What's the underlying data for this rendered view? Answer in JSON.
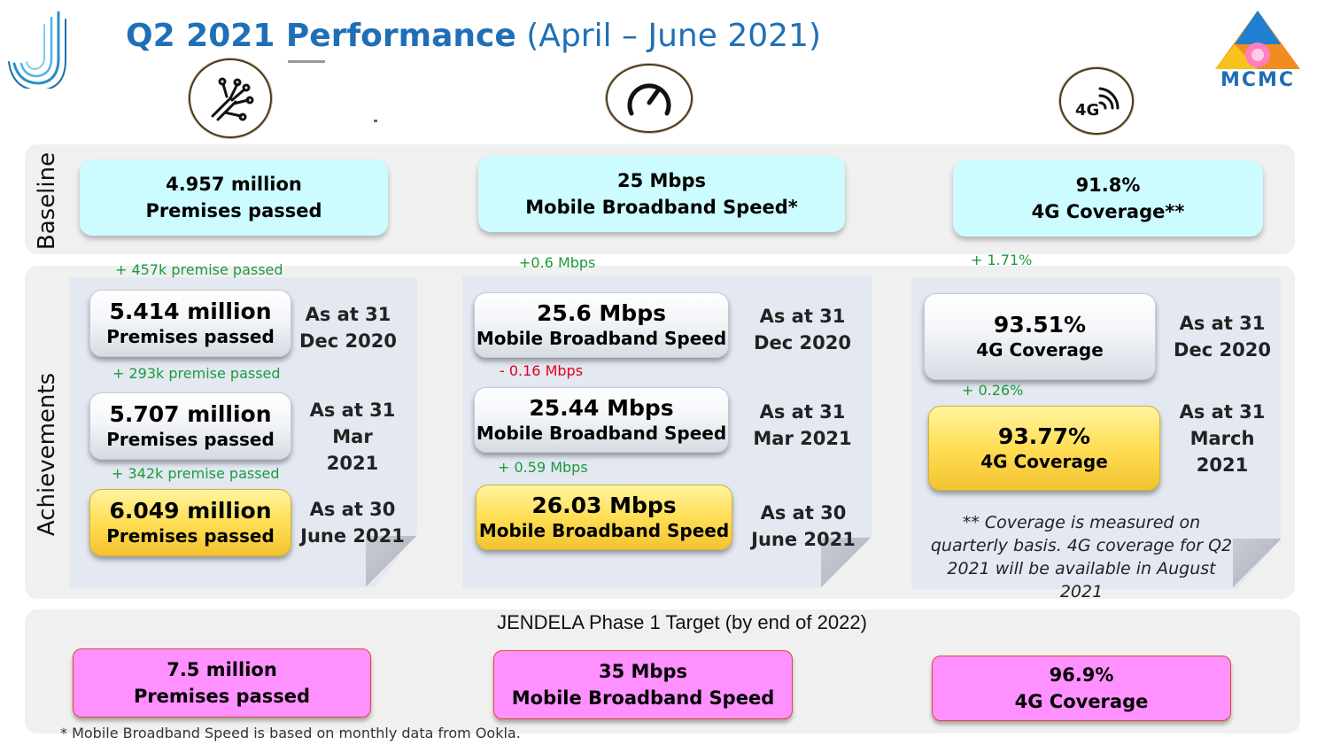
{
  "title": {
    "bold": "Q2 2021 Performance",
    "regular": "(April – June 2021)"
  },
  "logo_right": {
    "text": "MCMC"
  },
  "icons": [
    "circuit-network-icon",
    "speedometer-icon",
    "4g-signal-icon"
  ],
  "icon_4g_text": "4G",
  "sections": {
    "baseline": "Baseline",
    "achievements": "Achievements"
  },
  "baseline": [
    {
      "value": "4.957 million",
      "label": "Premises passed"
    },
    {
      "value": "25 Mbps",
      "label": "Mobile Broadband Speed*"
    },
    {
      "value": "91.8%",
      "label": "4G Coverage**"
    }
  ],
  "premises": {
    "deltas": [
      "+ 457k premise passed",
      "+ 293k premise passed",
      "+ 342k premise passed"
    ],
    "items": [
      {
        "value": "5.414 million",
        "label": "Premises passed",
        "date": "As at 31 Dec 2020"
      },
      {
        "value": "5.707 million",
        "label": "Premises passed",
        "date": "As at 31 Mar 2021"
      },
      {
        "value": "6.049 million",
        "label": "Premises passed",
        "date": "As at 30 June 2021"
      }
    ]
  },
  "speed": {
    "deltas": [
      "+0.6 Mbps",
      "- 0.16 Mbps",
      "+ 0.59 Mbps"
    ],
    "items": [
      {
        "value": "25.6 Mbps",
        "label": "Mobile Broadband Speed",
        "date": "As at 31 Dec 2020"
      },
      {
        "value": "25.44 Mbps",
        "label": "Mobile Broadband Speed",
        "date": "As at 31 Mar 2021"
      },
      {
        "value": "26.03 Mbps",
        "label": "Mobile Broadband Speed",
        "date": "As at 30 June 2021"
      }
    ]
  },
  "coverage": {
    "deltas": [
      "+ 1.71%",
      "+ 0.26%"
    ],
    "items": [
      {
        "value": "93.51%",
        "label": "4G Coverage",
        "date": "As at 31 Dec 2020"
      },
      {
        "value": "93.77%",
        "label": "4G Coverage",
        "date": "As at 31 March 2021"
      }
    ],
    "note": "** Coverage is measured on quarterly basis. 4G coverage for Q2 2021 will be available in August 2021"
  },
  "target": {
    "heading": "JENDELA Phase 1 Target (by end of 2022)",
    "items": [
      {
        "value": "7.5 million",
        "label": "Premises passed"
      },
      {
        "value": "35 Mbps",
        "label": "Mobile Broadband Speed"
      },
      {
        "value": "96.9%",
        "label": "4G Coverage"
      }
    ]
  },
  "footnote": "* Mobile Broadband Speed is based on monthly data from Ookla."
}
